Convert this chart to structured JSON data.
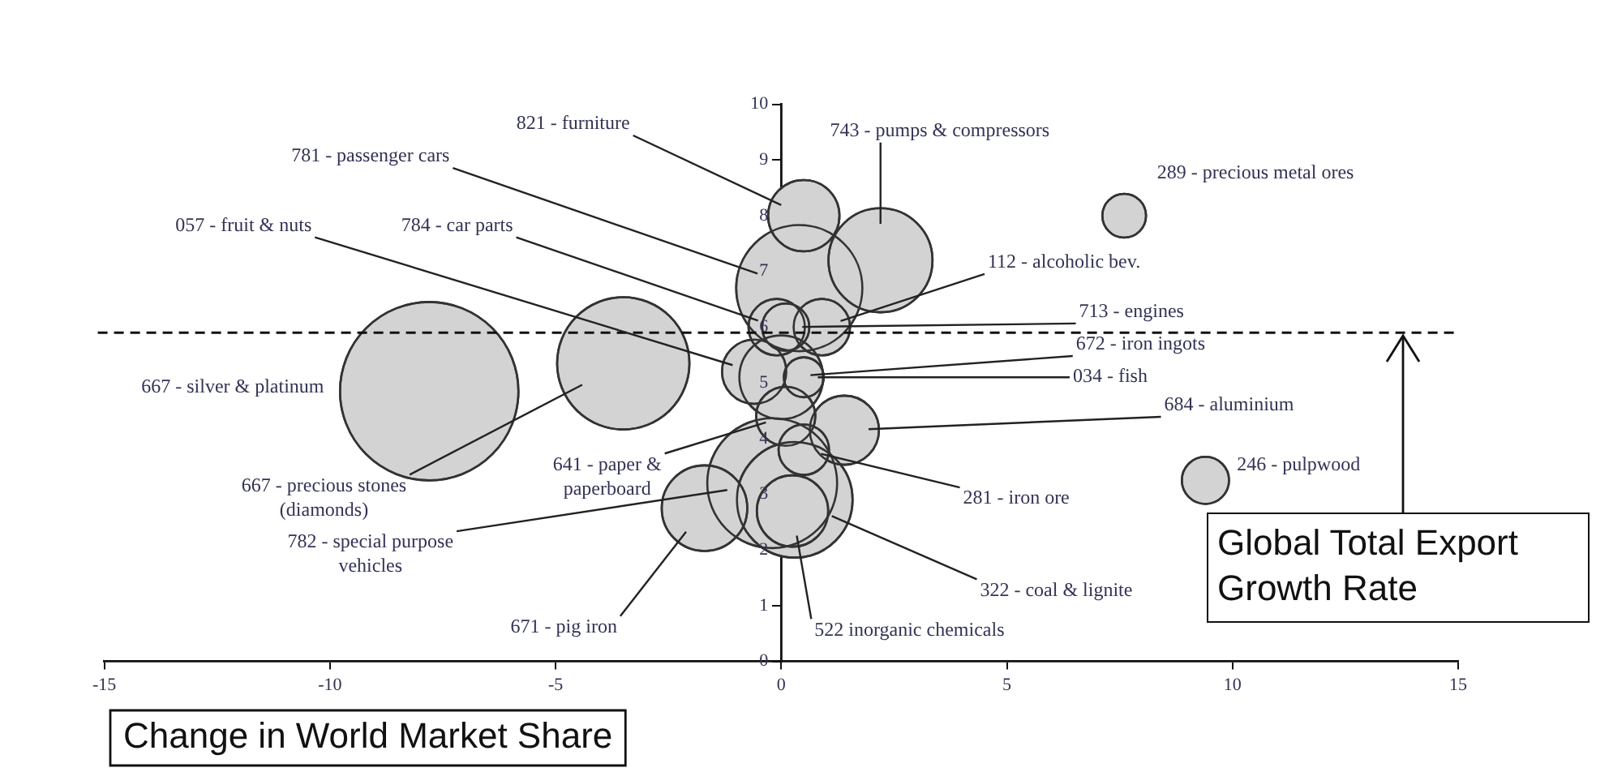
{
  "chart_data": {
    "type": "bubble",
    "xlabel": "Change in World Market Share",
    "xlim": [
      -15,
      15
    ],
    "xticks": [
      -15,
      -10,
      -5,
      0,
      5,
      10,
      15
    ],
    "ylim": [
      0,
      10
    ],
    "yticks": [
      0,
      1,
      2,
      3,
      4,
      5,
      6,
      7,
      8,
      9,
      10
    ],
    "ref_lines": [
      {
        "axis": "y",
        "value": 5.9,
        "label": "Global Total Export Growth Rate",
        "line_style": "dashed"
      }
    ],
    "series": [
      {
        "name": "667 - silver & platinum",
        "color": "#d3d3d3",
        "x": [
          -7.8
        ],
        "values": [
          4.85
        ],
        "sizes": [
          1
        ]
      },
      {
        "name": "667 - precious stones (diamonds)",
        "color": "#d3d3d3",
        "x": [
          -3.5
        ],
        "values": [
          5.35
        ],
        "sizes": [
          0.55
        ]
      },
      {
        "name": "821 - furniture",
        "color": "#d3d3d3",
        "x": [
          0.5
        ],
        "values": [
          8.0
        ],
        "sizes": [
          0.16
        ]
      },
      {
        "name": "743 - pumps & compressors",
        "color": "#d3d3d3",
        "x": [
          2.2
        ],
        "values": [
          7.2
        ],
        "sizes": [
          0.34
        ]
      },
      {
        "name": "781 - passenger cars",
        "color": "#d3d3d3",
        "x": [
          0.4
        ],
        "values": [
          6.7
        ],
        "sizes": [
          0.5
        ]
      },
      {
        "name": "289 - precious metal ores",
        "color": "#d3d3d3",
        "x": [
          7.6
        ],
        "values": [
          8.0
        ],
        "sizes": [
          0.06
        ]
      },
      {
        "name": "784 - car parts",
        "color": "#d3d3d3",
        "x": [
          -0.1
        ],
        "values": [
          6.0
        ],
        "sizes": [
          0.1
        ]
      },
      {
        "name": "713 - engines",
        "color": "#d3d3d3",
        "x": [
          0.1
        ],
        "values": [
          6.0
        ],
        "sizes": [
          0.07
        ]
      },
      {
        "name": "112 - alcoholic bev.",
        "color": "#d3d3d3",
        "x": [
          0.9
        ],
        "values": [
          6.0
        ],
        "sizes": [
          0.1
        ]
      },
      {
        "name": "057 - fruit & nuts",
        "color": "#d3d3d3",
        "x": [
          -0.6
        ],
        "values": [
          5.2
        ],
        "sizes": [
          0.13
        ]
      },
      {
        "name": "672 - iron ingots",
        "color": "#d3d3d3",
        "x": [
          0.0
        ],
        "values": [
          5.1
        ],
        "sizes": [
          0.22
        ]
      },
      {
        "name": "034 - fish",
        "color": "#d3d3d3",
        "x": [
          0.5
        ],
        "values": [
          5.1
        ],
        "sizes": [
          0.05
        ]
      },
      {
        "name": "641 - paper & paperboard",
        "color": "#d3d3d3",
        "x": [
          0.1
        ],
        "values": [
          4.4
        ],
        "sizes": [
          0.11
        ]
      },
      {
        "name": "684 - aluminium",
        "color": "#d3d3d3",
        "x": [
          1.4
        ],
        "values": [
          4.15
        ],
        "sizes": [
          0.15
        ]
      },
      {
        "name": "281 - iron ore",
        "color": "#d3d3d3",
        "x": [
          0.5
        ],
        "values": [
          3.8
        ],
        "sizes": [
          0.08
        ]
      },
      {
        "name": "782 - special purpose vehicles",
        "color": "#d3d3d3",
        "x": [
          -0.2
        ],
        "values": [
          3.2
        ],
        "sizes": [
          0.53
        ]
      },
      {
        "name": "322 - coal & lignite",
        "color": "#d3d3d3",
        "x": [
          0.3
        ],
        "values": [
          2.9
        ],
        "sizes": [
          0.42
        ]
      },
      {
        "name": "671 - pig iron",
        "color": "#d3d3d3",
        "x": [
          -1.7
        ],
        "values": [
          2.75
        ],
        "sizes": [
          0.23
        ]
      },
      {
        "name": "522 inorganic chemicals",
        "color": "#d3d3d3",
        "x": [
          0.25
        ],
        "values": [
          2.7
        ],
        "sizes": [
          0.16
        ]
      },
      {
        "name": "246 - pulpwood",
        "color": "#d3d3d3",
        "x": [
          9.4
        ],
        "values": [
          3.25
        ],
        "sizes": [
          0.07
        ]
      }
    ]
  }
}
